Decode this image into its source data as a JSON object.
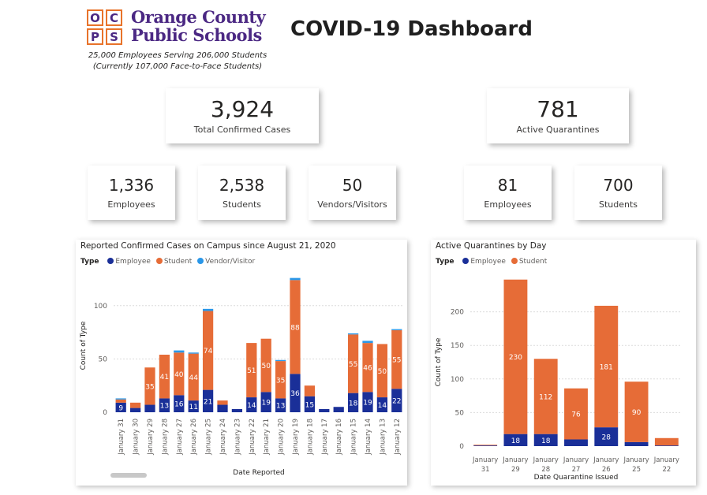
{
  "header": {
    "logo_letters": [
      "O",
      "C",
      "P",
      "S"
    ],
    "org_name_line1": "Orange County",
    "org_name_line2": "Public Schools",
    "tagline_line1": "25,000 Employees Serving 206,000 Students",
    "tagline_line2": "(Currently 107,000 Face-to-Face Students)",
    "title": "COVID-19 Dashboard"
  },
  "cards": {
    "total_cases": {
      "value": "3,924",
      "label": "Total Confirmed Cases"
    },
    "active_quarantines": {
      "value": "781",
      "label": "Active Quarantines"
    },
    "cases_employees": {
      "value": "1,336",
      "label": "Employees"
    },
    "cases_students": {
      "value": "2,538",
      "label": "Students"
    },
    "cases_vendors": {
      "value": "50",
      "label": "Vendors/Visitors"
    },
    "quar_employees": {
      "value": "81",
      "label": "Employees"
    },
    "quar_students": {
      "value": "700",
      "label": "Students"
    }
  },
  "colors": {
    "employee": "#1a2f98",
    "student": "#e66c37",
    "vendor": "#2a97e8"
  },
  "chart_data": [
    {
      "type": "bar",
      "stacked": true,
      "title": "Reported Confirmed Cases on Campus since August 21, 2020",
      "legend_title": "Type",
      "legend": [
        "Employee",
        "Student",
        "Vendor/Visitor"
      ],
      "xlabel": "Date Reported",
      "ylabel": "Count of Type",
      "ylim": [
        0,
        125
      ],
      "yticks": [
        0,
        50,
        100
      ],
      "categories": [
        "January 31",
        "January 30",
        "January 29",
        "January 28",
        "January 27",
        "January 26",
        "January 25",
        "January 24",
        "January 23",
        "January 22",
        "January 21",
        "January 20",
        "January 19",
        "January 18",
        "January 17",
        "January 16",
        "January 15",
        "January 14",
        "January 13",
        "January 12"
      ],
      "series": [
        {
          "name": "Employee",
          "values": [
            9,
            4,
            7,
            13,
            16,
            11,
            21,
            7,
            3,
            14,
            19,
            13,
            36,
            15,
            3,
            5,
            18,
            19,
            14,
            22
          ],
          "labels": [
            "9",
            "",
            "",
            "13",
            "16",
            "11",
            "21",
            "",
            "",
            "14",
            "19",
            "13",
            "36",
            "15",
            "",
            "",
            "18",
            "19",
            "14",
            "22"
          ]
        },
        {
          "name": "Student",
          "values": [
            3,
            5,
            35,
            41,
            40,
            44,
            74,
            4,
            0,
            51,
            50,
            35,
            88,
            10,
            0,
            0,
            55,
            46,
            50,
            55
          ],
          "labels": [
            "",
            "",
            "35",
            "41",
            "40",
            "44",
            "74",
            "",
            "",
            "51",
            "50",
            "35",
            "88",
            "",
            "",
            "",
            "55",
            "46",
            "50",
            "55"
          ]
        },
        {
          "name": "Vendor/Visitor",
          "values": [
            1,
            0,
            0,
            0,
            2,
            1,
            2,
            0,
            0,
            0,
            0,
            1,
            2,
            0,
            0,
            0,
            1,
            2,
            0,
            1
          ],
          "labels": []
        }
      ]
    },
    {
      "type": "bar",
      "stacked": true,
      "title": "Active Quarantines by Day",
      "legend_title": "Type",
      "legend": [
        "Employee",
        "Student"
      ],
      "xlabel": "Date Quarantine Issued",
      "ylabel": "Count of Type",
      "ylim": [
        0,
        250
      ],
      "yticks": [
        0,
        50,
        100,
        150,
        200
      ],
      "categories": [
        "January 31",
        "January 29",
        "January 28",
        "January 27",
        "January 26",
        "January 25",
        "January 22"
      ],
      "series": [
        {
          "name": "Employee",
          "values": [
            1,
            18,
            18,
            10,
            28,
            6,
            1
          ],
          "labels": [
            "",
            "18",
            "18",
            "",
            "28",
            "",
            ""
          ]
        },
        {
          "name": "Student",
          "values": [
            1,
            230,
            112,
            76,
            181,
            90,
            11
          ],
          "labels": [
            "",
            "230",
            "112",
            "76",
            "181",
            "90",
            ""
          ]
        }
      ]
    }
  ]
}
